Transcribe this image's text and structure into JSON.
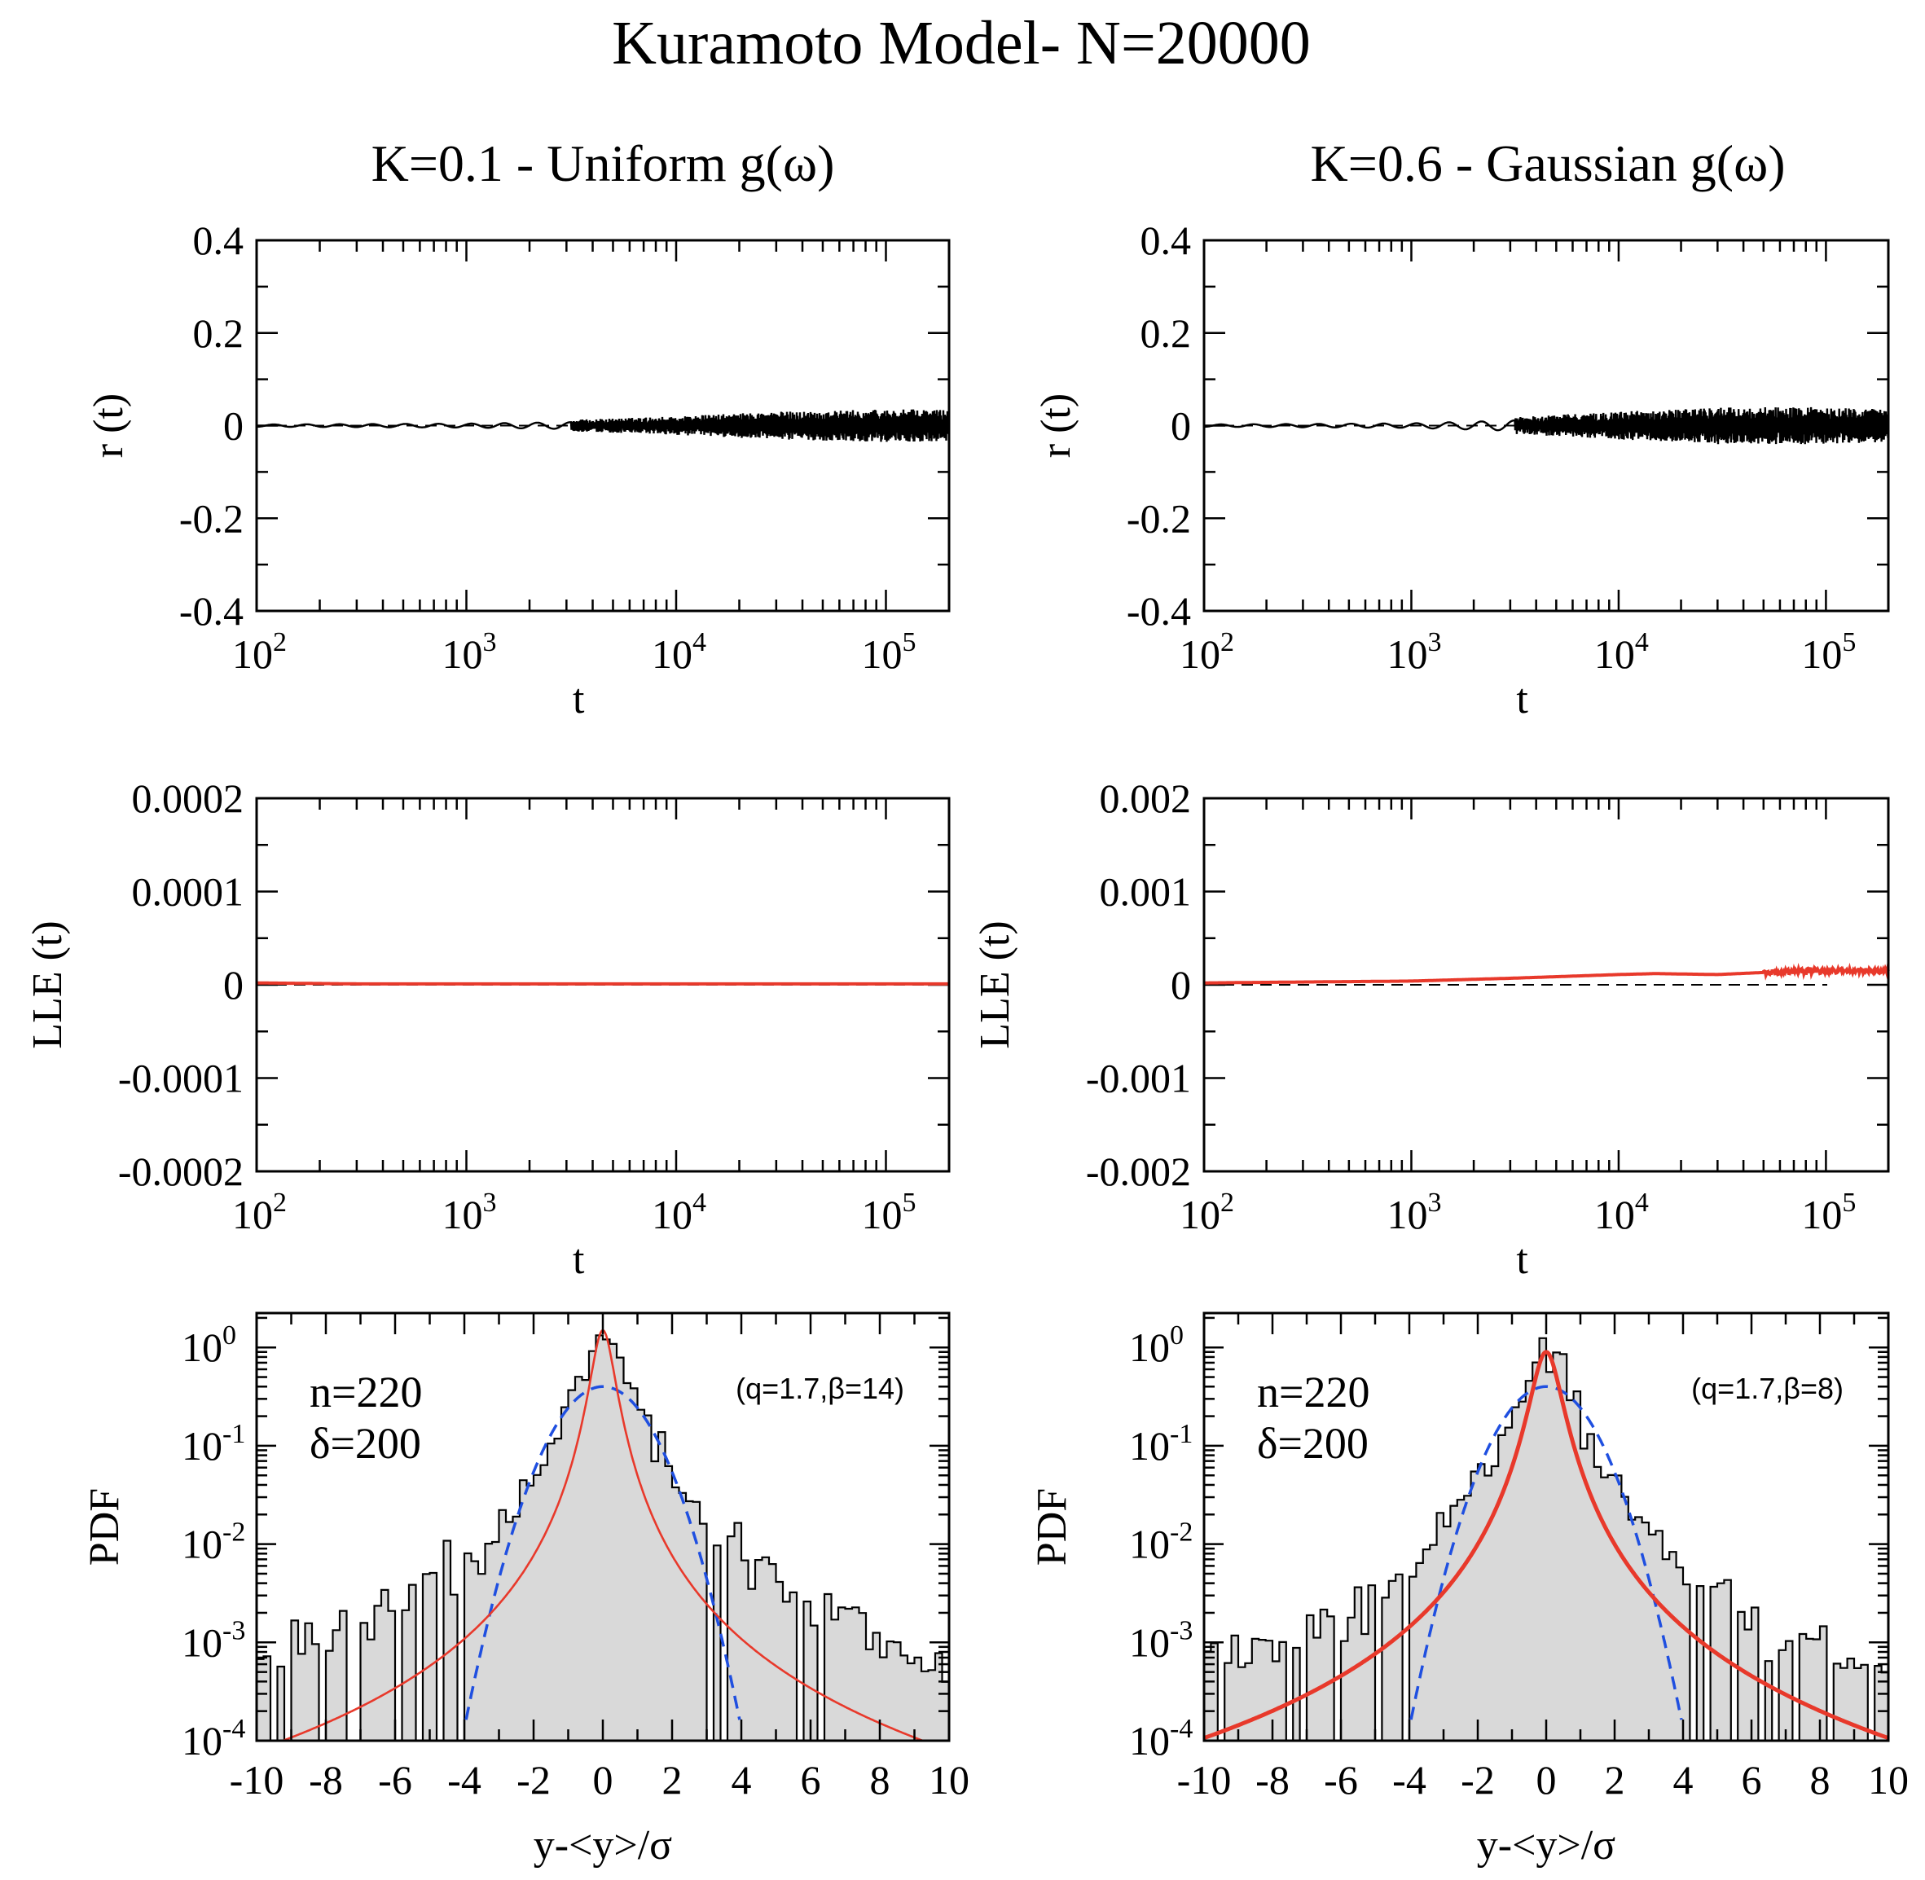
{
  "figure_title": "Kuramoto Model- N=20000",
  "columns": [
    {
      "title": "K=0.1 - Uniform g(ω)"
    },
    {
      "title": "K=0.6 - Gaussian g(ω)"
    }
  ],
  "colors": {
    "axis": "#000000",
    "signal": "#000000",
    "lle": "#e8392b",
    "qgauss": "#e8392b",
    "gauss": "#1f4fe0",
    "hist_fill": "#d9d9d9"
  },
  "chart_data": [
    {
      "type": "line",
      "panel": "r-left",
      "xscale": "log",
      "xlabel": "t",
      "ylabel": "r (t)",
      "xlim": [
        100,
        200000
      ],
      "ylim": [
        -0.4,
        0.4
      ],
      "yticks": [
        -0.4,
        -0.2,
        0,
        0.2,
        0.4
      ],
      "yticklabels": [
        "-0.4",
        "-0.2",
        "0",
        "0.2",
        "0.4"
      ],
      "xticks": [
        100,
        1000,
        10000,
        100000
      ],
      "xtick_base": [
        "10",
        "10",
        "10",
        "10"
      ],
      "xtick_exp": [
        "2",
        "3",
        "4",
        "5"
      ],
      "reference_line": 0,
      "series": [
        {
          "name": "r(t)",
          "envelope": {
            "t": [
              100,
              1000,
              3000,
              10000,
              30000,
              100000,
              200000
            ],
            "amplitude": [
              0.004,
              0.007,
              0.012,
              0.02,
              0.03,
              0.035,
              0.035
            ]
          }
        }
      ]
    },
    {
      "type": "line",
      "panel": "r-right",
      "xscale": "log",
      "xlabel": "t",
      "ylabel": "r (t)",
      "xlim": [
        100,
        200000
      ],
      "ylim": [
        -0.4,
        0.4
      ],
      "yticks": [
        -0.4,
        -0.2,
        0,
        0.2,
        0.4
      ],
      "yticklabels": [
        "-0.4",
        "-0.2",
        "0",
        "0.2",
        "0.4"
      ],
      "xticks": [
        100,
        1000,
        10000,
        100000
      ],
      "xtick_base": [
        "10",
        "10",
        "10",
        "10"
      ],
      "xtick_exp": [
        "2",
        "3",
        "4",
        "5"
      ],
      "reference_line": 0,
      "series": [
        {
          "name": "r(t)",
          "envelope": {
            "t": [
              100,
              1000,
              3000,
              10000,
              30000,
              100000,
              200000
            ],
            "amplitude": [
              0.004,
              0.008,
              0.018,
              0.03,
              0.04,
              0.04,
              0.035
            ]
          }
        }
      ]
    },
    {
      "type": "line",
      "panel": "lle-left",
      "xscale": "log",
      "xlabel": "t",
      "ylabel": "LLE (t)",
      "xlim": [
        100,
        200000
      ],
      "ylim": [
        -0.0002,
        0.0002
      ],
      "yticks": [
        -0.0002,
        -0.0001,
        0,
        0.0001,
        0.0002
      ],
      "yticklabels": [
        "-0.0002",
        "-0.0001",
        "0",
        "0.0001",
        "0.0002"
      ],
      "xticks": [
        100,
        1000,
        10000,
        100000
      ],
      "xtick_base": [
        "10",
        "10",
        "10",
        "10"
      ],
      "xtick_exp": [
        "2",
        "3",
        "4",
        "5"
      ],
      "reference_line": 0,
      "series": [
        {
          "name": "LLE(t)",
          "t": [
            100,
            300,
            1000,
            3000,
            10000,
            30000,
            100000,
            200000
          ],
          "values": [
            2e-06,
            1e-06,
            1e-06,
            1e-06,
            1e-06,
            1e-06,
            1e-06,
            1e-06
          ]
        }
      ]
    },
    {
      "type": "line",
      "panel": "lle-right",
      "xscale": "log",
      "xlabel": "t",
      "ylabel": "LLE (t)",
      "xlim": [
        100,
        200000
      ],
      "ylim": [
        -0.002,
        0.002
      ],
      "yticks": [
        -0.002,
        -0.001,
        0,
        0.001,
        0.002
      ],
      "yticklabels": [
        "-0.002",
        "-0.001",
        "0",
        "0.001",
        "0.002"
      ],
      "xticks": [
        100,
        1000,
        10000,
        100000
      ],
      "xtick_base": [
        "10",
        "10",
        "10",
        "10"
      ],
      "xtick_exp": [
        "2",
        "3",
        "4",
        "5"
      ],
      "reference_line": 0,
      "series": [
        {
          "name": "LLE(t)",
          "t": [
            100,
            300,
            1000,
            3000,
            10000,
            15000,
            30000,
            60000,
            100000,
            200000
          ],
          "values": [
            2e-05,
            3e-05,
            4e-05,
            7e-05,
            0.00011,
            0.00012,
            0.00011,
            0.00014,
            0.00015,
            0.00015
          ]
        }
      ]
    },
    {
      "type": "histogram",
      "panel": "pdf-left",
      "yscale": "log",
      "xlabel": "y-<y>/σ",
      "ylabel": "PDF",
      "xlim": [
        -10,
        10
      ],
      "ylim_exp": [
        -4,
        0.35
      ],
      "xticks": [
        -10,
        -8,
        -6,
        -4,
        -2,
        0,
        2,
        4,
        6,
        8,
        10
      ],
      "xticklabels": [
        "-10",
        "-8",
        "-6",
        "-4",
        "-2",
        "0",
        "2",
        "4",
        "6",
        "8",
        "10"
      ],
      "ytick_exp": [
        -4,
        -3,
        -2,
        -1,
        0
      ],
      "ytick_base": [
        "10",
        "10",
        "10",
        "10",
        "10"
      ],
      "ytick_exp_labels": [
        "-4",
        "-3",
        "-2",
        "-1",
        "0"
      ],
      "annotation_lines": [
        "n=220",
        "δ=200"
      ],
      "fit_label": "(q=1.7,β=14)",
      "fits": {
        "q_gaussian": {
          "q": 1.7,
          "beta": 14,
          "peak": 1.5,
          "line": "solid-thin"
        },
        "gaussian": {
          "peak": 0.4,
          "line": "dashed"
        }
      },
      "histogram": {
        "bin_width": 0.2,
        "peak": 1.5,
        "scale": 0.25,
        "noise_floor": 0.00022
      }
    },
    {
      "type": "histogram",
      "panel": "pdf-right",
      "yscale": "log",
      "xlabel": "y-<y>/σ",
      "ylabel": "PDF",
      "xlim": [
        -10,
        10
      ],
      "ylim_exp": [
        -4,
        0.35
      ],
      "xticks": [
        -10,
        -8,
        -6,
        -4,
        -2,
        0,
        2,
        4,
        6,
        8,
        10
      ],
      "xticklabels": [
        "-10",
        "-8",
        "-6",
        "-4",
        "-2",
        "0",
        "2",
        "4",
        "6",
        "8",
        "10"
      ],
      "ytick_exp": [
        -4,
        -3,
        -2,
        -1,
        0
      ],
      "ytick_base": [
        "10",
        "10",
        "10",
        "10",
        "10"
      ],
      "ytick_exp_labels": [
        "-4",
        "-3",
        "-2",
        "-1",
        "0"
      ],
      "annotation_lines": [
        "n=220",
        "δ=200"
      ],
      "fit_label": "(q=1.7,β=8)",
      "fits": {
        "q_gaussian": {
          "q": 1.7,
          "beta": 8,
          "peak": 0.9,
          "line": "solid-thick"
        },
        "gaussian": {
          "peak": 0.4,
          "line": "dashed"
        }
      },
      "histogram": {
        "bin_width": 0.2,
        "peak": 0.9,
        "scale": 0.35,
        "noise_floor": 0.00035
      }
    }
  ]
}
